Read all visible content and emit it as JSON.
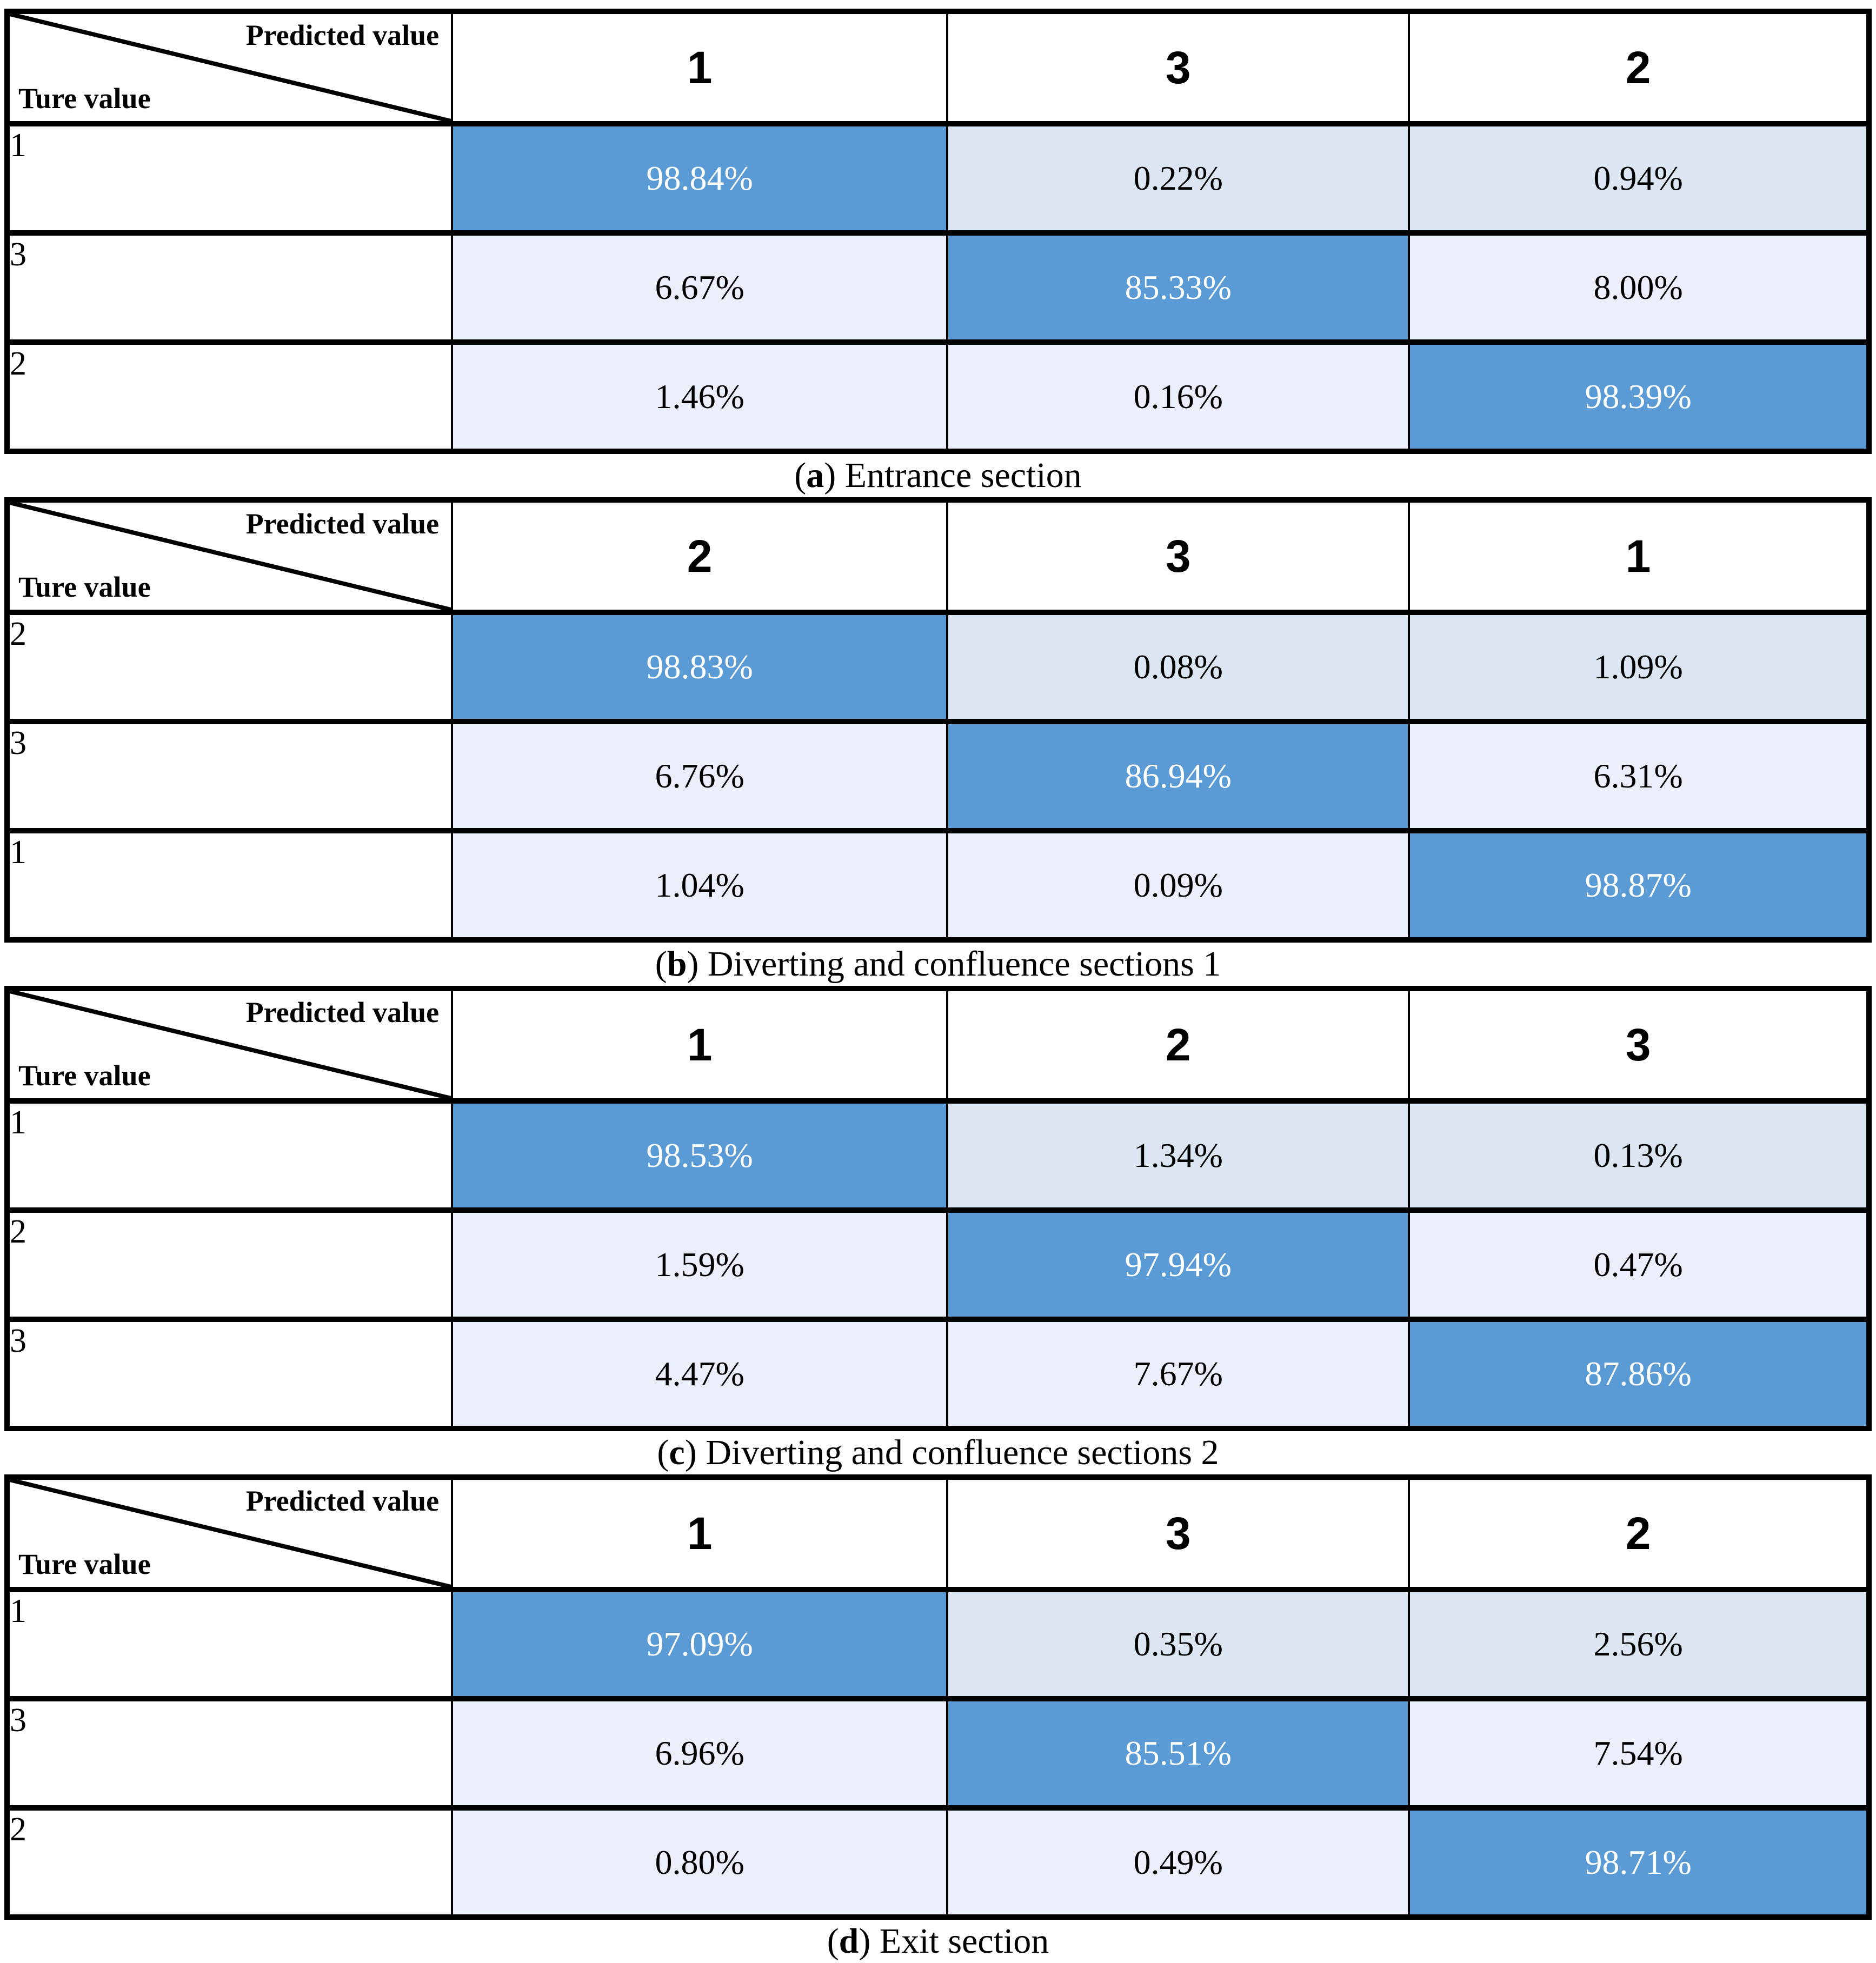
{
  "colors": {
    "diagonal_fill": "#5b9bd5",
    "diagonal_text": "#ffffff",
    "first_row_fill": "#dce6f2",
    "other_row_fill": "#eaeffb",
    "off_text": "#000000",
    "border": "#000000"
  },
  "corner": {
    "predicted_label": "Predicted value",
    "true_label": "Ture value"
  },
  "tables": [
    {
      "caption_letter": "a",
      "caption_text": "Entrance section",
      "columns": [
        "1",
        "3",
        "2"
      ],
      "rows": [
        {
          "label": "1",
          "cells": [
            {
              "value": "98.84%",
              "highlight": true
            },
            {
              "value": "0.22%",
              "highlight": false
            },
            {
              "value": "0.94%",
              "highlight": false
            }
          ]
        },
        {
          "label": "3",
          "cells": [
            {
              "value": "6.67%",
              "highlight": false
            },
            {
              "value": "85.33%",
              "highlight": true
            },
            {
              "value": "8.00%",
              "highlight": false
            }
          ]
        },
        {
          "label": "2",
          "cells": [
            {
              "value": "1.46%",
              "highlight": false
            },
            {
              "value": "0.16%",
              "highlight": false
            },
            {
              "value": "98.39%",
              "highlight": true
            }
          ]
        }
      ]
    },
    {
      "caption_letter": "b",
      "caption_text": "Diverting and confluence sections 1",
      "columns": [
        "2",
        "3",
        "1"
      ],
      "rows": [
        {
          "label": "2",
          "cells": [
            {
              "value": "98.83%",
              "highlight": true
            },
            {
              "value": "0.08%",
              "highlight": false
            },
            {
              "value": "1.09%",
              "highlight": false
            }
          ]
        },
        {
          "label": "3",
          "cells": [
            {
              "value": "6.76%",
              "highlight": false
            },
            {
              "value": "86.94%",
              "highlight": true
            },
            {
              "value": "6.31%",
              "highlight": false
            }
          ]
        },
        {
          "label": "1",
          "cells": [
            {
              "value": "1.04%",
              "highlight": false
            },
            {
              "value": "0.09%",
              "highlight": false
            },
            {
              "value": "98.87%",
              "highlight": true
            }
          ]
        }
      ]
    },
    {
      "caption_letter": "c",
      "caption_text": "Diverting and confluence sections 2",
      "columns": [
        "1",
        "2",
        "3"
      ],
      "rows": [
        {
          "label": "1",
          "cells": [
            {
              "value": "98.53%",
              "highlight": true
            },
            {
              "value": "1.34%",
              "highlight": false
            },
            {
              "value": "0.13%",
              "highlight": false
            }
          ]
        },
        {
          "label": "2",
          "cells": [
            {
              "value": "1.59%",
              "highlight": false
            },
            {
              "value": "97.94%",
              "highlight": true
            },
            {
              "value": "0.47%",
              "highlight": false
            }
          ]
        },
        {
          "label": "3",
          "cells": [
            {
              "value": "4.47%",
              "highlight": false
            },
            {
              "value": "7.67%",
              "highlight": false
            },
            {
              "value": "87.86%",
              "highlight": true
            }
          ]
        }
      ]
    },
    {
      "caption_letter": "d",
      "caption_text": "Exit section",
      "columns": [
        "1",
        "3",
        "2"
      ],
      "rows": [
        {
          "label": "1",
          "cells": [
            {
              "value": "97.09%",
              "highlight": true
            },
            {
              "value": "0.35%",
              "highlight": false
            },
            {
              "value": "2.56%",
              "highlight": false
            }
          ]
        },
        {
          "label": "3",
          "cells": [
            {
              "value": "6.96%",
              "highlight": false
            },
            {
              "value": "85.51%",
              "highlight": true
            },
            {
              "value": "7.54%",
              "highlight": false
            }
          ]
        },
        {
          "label": "2",
          "cells": [
            {
              "value": "0.80%",
              "highlight": false
            },
            {
              "value": "0.49%",
              "highlight": false
            },
            {
              "value": "98.71%",
              "highlight": true
            }
          ]
        }
      ]
    }
  ],
  "chart_data": [
    {
      "type": "heatmap",
      "title": "(a) Entrance section",
      "xlabel": "Predicted value",
      "ylabel": "Ture value",
      "x_labels": [
        "1",
        "3",
        "2"
      ],
      "y_labels": [
        "1",
        "3",
        "2"
      ],
      "values": [
        [
          98.84,
          0.22,
          0.94
        ],
        [
          6.67,
          85.33,
          8.0
        ],
        [
          1.46,
          0.16,
          98.39
        ]
      ],
      "unit": "%"
    },
    {
      "type": "heatmap",
      "title": "(b) Diverting and confluence sections 1",
      "xlabel": "Predicted value",
      "ylabel": "Ture value",
      "x_labels": [
        "2",
        "3",
        "1"
      ],
      "y_labels": [
        "2",
        "3",
        "1"
      ],
      "values": [
        [
          98.83,
          0.08,
          1.09
        ],
        [
          6.76,
          86.94,
          6.31
        ],
        [
          1.04,
          0.09,
          98.87
        ]
      ],
      "unit": "%"
    },
    {
      "type": "heatmap",
      "title": "(c) Diverting and confluence sections 2",
      "xlabel": "Predicted value",
      "ylabel": "Ture value",
      "x_labels": [
        "1",
        "2",
        "3"
      ],
      "y_labels": [
        "1",
        "2",
        "3"
      ],
      "values": [
        [
          98.53,
          1.34,
          0.13
        ],
        [
          1.59,
          97.94,
          0.47
        ],
        [
          4.47,
          7.67,
          87.86
        ]
      ],
      "unit": "%"
    },
    {
      "type": "heatmap",
      "title": "(d) Exit section",
      "xlabel": "Predicted value",
      "ylabel": "Ture value",
      "x_labels": [
        "1",
        "3",
        "2"
      ],
      "y_labels": [
        "1",
        "3",
        "2"
      ],
      "values": [
        [
          97.09,
          0.35,
          2.56
        ],
        [
          6.96,
          85.51,
          7.54
        ],
        [
          0.8,
          0.49,
          98.71
        ]
      ],
      "unit": "%"
    }
  ]
}
